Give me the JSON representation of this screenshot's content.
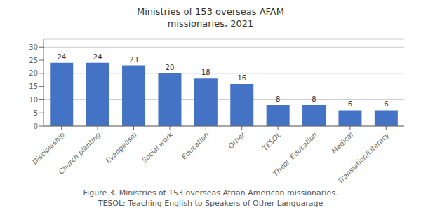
{
  "chart_data": {
    "type": "bar",
    "title": "Ministries of 153 overseas AFAM",
    "subtitle": "missionaries, 2021",
    "categories": [
      "Discipleship",
      "Church planting",
      "Evangelism",
      "Social work",
      "Education",
      "Other",
      "TESOL",
      "Theol. Education",
      "Medical",
      "Translation/Literacy"
    ],
    "values": [
      24,
      24,
      23,
      20,
      18,
      16,
      8,
      8,
      6,
      6
    ],
    "color": "#4472C4",
    "ylim": [
      0,
      33
    ],
    "yticks": [
      0,
      5,
      10,
      15,
      20,
      25,
      30
    ],
    "grid": true,
    "data_labels": true,
    "annotations": [
      "Figure 3. Ministries of 153 overseas Afrian American missionaries.",
      "TESOL: Teaching English to Speakers of Other Languarage"
    ]
  }
}
